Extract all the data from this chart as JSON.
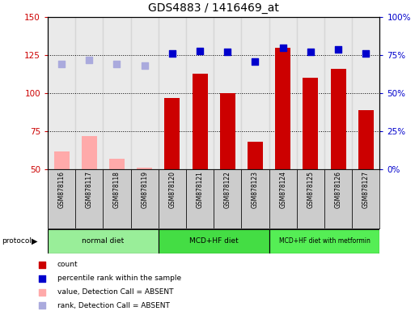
{
  "title": "GDS4883 / 1416469_at",
  "samples": [
    "GSM878116",
    "GSM878117",
    "GSM878118",
    "GSM878119",
    "GSM878120",
    "GSM878121",
    "GSM878122",
    "GSM878123",
    "GSM878124",
    "GSM878125",
    "GSM878126",
    "GSM878127"
  ],
  "absent_mask": [
    true,
    true,
    true,
    true,
    false,
    false,
    false,
    false,
    false,
    false,
    false,
    false
  ],
  "count_values": [
    62,
    72,
    57,
    51,
    97,
    113,
    100,
    68,
    130,
    110,
    116,
    89
  ],
  "percentile_values": [
    69,
    72,
    69,
    68,
    76,
    78,
    77,
    71,
    80,
    77,
    79,
    76
  ],
  "bar_color_present": "#cc0000",
  "bar_color_absent": "#ffaaaa",
  "dot_color_present": "#0000cc",
  "dot_color_absent": "#aaaadd",
  "ylim_left": [
    50,
    150
  ],
  "ylim_right": [
    0,
    100
  ],
  "yticks_left": [
    50,
    75,
    100,
    125,
    150
  ],
  "yticks_right": [
    0,
    25,
    50,
    75,
    100
  ],
  "ytick_labels_right": [
    "0%",
    "25%",
    "50%",
    "75%",
    "100%"
  ],
  "protocol_groups": [
    {
      "label": "normal diet",
      "start": 0,
      "end": 4,
      "color": "#99ee99"
    },
    {
      "label": "MCD+HF diet",
      "start": 4,
      "end": 8,
      "color": "#44dd44"
    },
    {
      "label": "MCD+HF diet with metformin",
      "start": 8,
      "end": 12,
      "color": "#55ee55"
    }
  ],
  "legend_items": [
    {
      "label": "count",
      "color": "#cc0000"
    },
    {
      "label": "percentile rank within the sample",
      "color": "#0000cc"
    },
    {
      "label": "value, Detection Call = ABSENT",
      "color": "#ffaaaa"
    },
    {
      "label": "rank, Detection Call = ABSENT",
      "color": "#aaaadd"
    }
  ],
  "bar_width": 0.55,
  "dot_size": 40,
  "col_bg_color": "#cccccc",
  "fig_width": 5.13,
  "fig_height": 3.84,
  "fig_dpi": 100
}
